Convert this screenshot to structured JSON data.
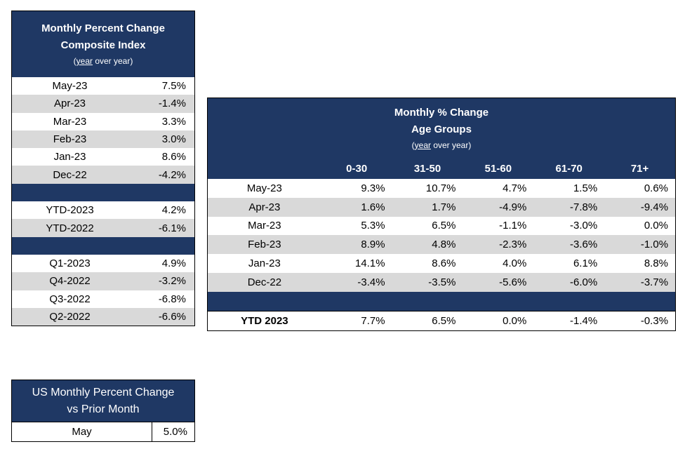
{
  "composite": {
    "title_line1": "Monthly Percent Change",
    "title_line2": "Composite Index",
    "subtitle_u": "year",
    "subtitle_rest": " over year)",
    "subtitle_open": "(",
    "rows": [
      {
        "label": "May-23",
        "value": "7.5%"
      },
      {
        "label": "Apr-23",
        "value": "-1.4%"
      },
      {
        "label": "Mar-23",
        "value": "3.3%"
      },
      {
        "label": "Feb-23",
        "value": "3.0%"
      },
      {
        "label": "Jan-23",
        "value": "8.6%"
      },
      {
        "label": "Dec-22",
        "value": "-4.2%"
      }
    ],
    "ytd_rows": [
      {
        "label": "YTD-2023",
        "value": "4.2%"
      },
      {
        "label": "YTD-2022",
        "value": "-6.1%"
      }
    ],
    "quarter_rows": [
      {
        "label": "Q1-2023",
        "value": "4.9%"
      },
      {
        "label": "Q4-2022",
        "value": "-3.2%"
      },
      {
        "label": "Q3-2022",
        "value": "-6.8%"
      },
      {
        "label": "Q2-2022",
        "value": "-6.6%"
      }
    ]
  },
  "age_groups": {
    "title_line1": "Monthly % Change",
    "title_line2": "Age Groups",
    "subtitle_open": "(",
    "subtitle_u": "year",
    "subtitle_rest": " over year)",
    "columns": [
      "0-30",
      "31-50",
      "51-60",
      "61-70",
      "71+"
    ],
    "rows": [
      {
        "label": "May-23",
        "values": [
          "9.3%",
          "10.7%",
          "4.7%",
          "1.5%",
          "0.6%"
        ]
      },
      {
        "label": "Apr-23",
        "values": [
          "1.6%",
          "1.7%",
          "-4.9%",
          "-7.8%",
          "-9.4%"
        ]
      },
      {
        "label": "Mar-23",
        "values": [
          "5.3%",
          "6.5%",
          "-1.1%",
          "-3.0%",
          "0.0%"
        ]
      },
      {
        "label": "Feb-23",
        "values": [
          "8.9%",
          "4.8%",
          "-2.3%",
          "-3.6%",
          "-1.0%"
        ]
      },
      {
        "label": "Jan-23",
        "values": [
          "14.1%",
          "8.6%",
          "4.0%",
          "6.1%",
          "8.8%"
        ]
      },
      {
        "label": "Dec-22",
        "values": [
          "-3.4%",
          "-3.5%",
          "-5.6%",
          "-6.0%",
          "-3.7%"
        ]
      }
    ],
    "ytd": {
      "label": "YTD 2023",
      "values": [
        "7.7%",
        "6.5%",
        "0.0%",
        "-1.4%",
        "-0.3%"
      ]
    }
  },
  "us_monthly": {
    "title_line1": "US Monthly Percent Change",
    "title_line2": "vs Prior Month",
    "row": {
      "label": "May",
      "value": "5.0%"
    }
  },
  "colors": {
    "header": "#1f3864",
    "band": "#d9d9d9"
  }
}
